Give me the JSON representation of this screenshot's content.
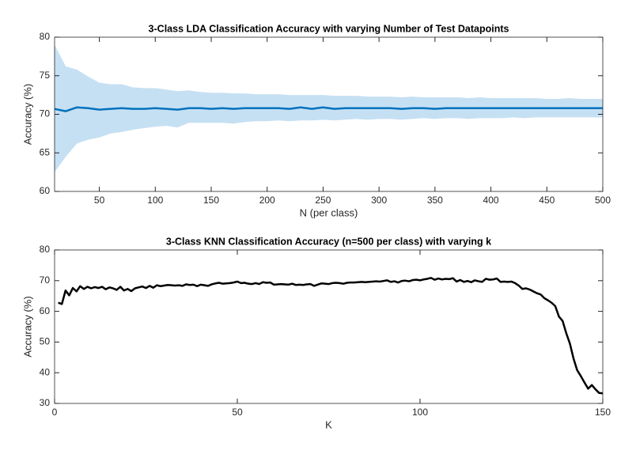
{
  "chart_data": [
    {
      "type": "line",
      "title": "3-Class LDA Classification Accuracy with varying Number of Test Datapoints",
      "xlabel": "N (per class)",
      "ylabel": "Accuracy (%)",
      "x": [
        10,
        20,
        30,
        40,
        50,
        60,
        70,
        80,
        90,
        100,
        110,
        120,
        130,
        140,
        150,
        160,
        170,
        180,
        190,
        200,
        210,
        220,
        230,
        240,
        250,
        260,
        270,
        280,
        290,
        300,
        310,
        320,
        330,
        340,
        350,
        360,
        370,
        380,
        390,
        400,
        410,
        420,
        430,
        440,
        450,
        460,
        470,
        480,
        490,
        500
      ],
      "series": [
        {
          "color": "#0072bd",
          "values": [
            70.7,
            70.4,
            70.9,
            70.8,
            70.6,
            70.7,
            70.8,
            70.7,
            70.7,
            70.8,
            70.7,
            70.6,
            70.8,
            70.8,
            70.7,
            70.8,
            70.7,
            70.8,
            70.8,
            70.8,
            70.8,
            70.7,
            70.9,
            70.7,
            70.9,
            70.7,
            70.8,
            70.8,
            70.8,
            70.8,
            70.8,
            70.7,
            70.8,
            70.8,
            70.7,
            70.8,
            70.8,
            70.8,
            70.8,
            70.8,
            70.8,
            70.8,
            70.8,
            70.8,
            70.8,
            70.8,
            70.8,
            70.8,
            70.8,
            70.8
          ]
        }
      ],
      "band": {
        "color": "#c6e0f3",
        "lower": [
          62.5,
          64.5,
          66.2,
          66.7,
          67.0,
          67.5,
          67.7,
          68.0,
          68.2,
          68.4,
          68.5,
          68.3,
          68.9,
          68.9,
          68.9,
          68.9,
          68.8,
          69.0,
          69.1,
          69.1,
          69.2,
          69.1,
          69.2,
          69.2,
          69.3,
          69.2,
          69.3,
          69.4,
          69.3,
          69.4,
          69.4,
          69.3,
          69.4,
          69.5,
          69.4,
          69.5,
          69.5,
          69.4,
          69.5,
          69.5,
          69.5,
          69.6,
          69.5,
          69.6,
          69.6,
          69.6,
          69.6,
          69.6,
          69.6,
          69.6
        ],
        "upper": [
          79.0,
          76.2,
          75.8,
          74.9,
          74.1,
          73.9,
          73.9,
          73.5,
          73.4,
          73.4,
          73.2,
          73.0,
          73.1,
          72.9,
          72.8,
          72.8,
          72.7,
          72.7,
          72.6,
          72.6,
          72.6,
          72.5,
          72.5,
          72.5,
          72.5,
          72.4,
          72.4,
          72.4,
          72.3,
          72.3,
          72.3,
          72.2,
          72.3,
          72.2,
          72.2,
          72.2,
          72.2,
          72.1,
          72.2,
          72.1,
          72.1,
          72.1,
          72.1,
          72.1,
          72.0,
          72.0,
          72.1,
          72.0,
          72.0,
          72.0
        ]
      },
      "xlim": [
        10,
        500
      ],
      "ylim": [
        60,
        80
      ],
      "xticks": [
        50,
        100,
        150,
        200,
        250,
        300,
        350,
        400,
        450,
        500
      ],
      "yticks": [
        60,
        65,
        70,
        75,
        80
      ]
    },
    {
      "type": "line",
      "title": "3-Class KNN Classification Accuracy (n=500 per class) with varying k",
      "xlabel": "K",
      "ylabel": "Accuracy (%)",
      "x": [
        1,
        2,
        3,
        4,
        5,
        6,
        7,
        8,
        9,
        10,
        11,
        12,
        13,
        14,
        15,
        16,
        17,
        18,
        19,
        20,
        21,
        22,
        23,
        24,
        25,
        26,
        27,
        28,
        29,
        30,
        31,
        32,
        33,
        34,
        35,
        36,
        37,
        38,
        39,
        40,
        41,
        42,
        43,
        44,
        45,
        46,
        47,
        48,
        49,
        50,
        51,
        52,
        53,
        54,
        55,
        56,
        57,
        58,
        59,
        60,
        61,
        62,
        63,
        64,
        65,
        66,
        67,
        68,
        69,
        70,
        71,
        72,
        73,
        74,
        75,
        76,
        77,
        78,
        79,
        80,
        81,
        82,
        83,
        84,
        85,
        86,
        87,
        88,
        89,
        90,
        91,
        92,
        93,
        94,
        95,
        96,
        97,
        98,
        99,
        100,
        101,
        102,
        103,
        104,
        105,
        106,
        107,
        108,
        109,
        110,
        111,
        112,
        113,
        114,
        115,
        116,
        117,
        118,
        119,
        120,
        121,
        122,
        123,
        124,
        125,
        126,
        127,
        128,
        129,
        130,
        131,
        132,
        133,
        134,
        135,
        136,
        137,
        138,
        139,
        140,
        141,
        142,
        143,
        144,
        145,
        146,
        147,
        148,
        149,
        150
      ],
      "series": [
        {
          "color": "#000000",
          "values": [
            62.8,
            62.4,
            66.8,
            65.2,
            67.6,
            66.5,
            68.2,
            67.3,
            68.0,
            67.5,
            67.9,
            67.6,
            68.0,
            67.2,
            67.8,
            67.5,
            67.0,
            68.0,
            66.8,
            67.3,
            66.6,
            67.5,
            67.8,
            68.1,
            67.6,
            68.3,
            67.7,
            68.5,
            68.2,
            68.4,
            68.6,
            68.5,
            68.4,
            68.5,
            68.3,
            68.8,
            68.6,
            68.7,
            68.2,
            68.7,
            68.5,
            68.3,
            68.8,
            69.1,
            69.3,
            69.0,
            69.1,
            69.2,
            69.4,
            69.7,
            69.2,
            69.3,
            69.0,
            68.9,
            69.2,
            68.9,
            69.5,
            69.3,
            69.4,
            68.7,
            68.8,
            68.9,
            68.8,
            68.7,
            69.0,
            68.6,
            68.7,
            68.6,
            68.8,
            68.9,
            68.3,
            68.7,
            69.1,
            69.0,
            68.9,
            69.2,
            69.3,
            69.2,
            69.0,
            69.3,
            69.4,
            69.4,
            69.5,
            69.6,
            69.5,
            69.6,
            69.7,
            69.8,
            69.7,
            69.9,
            70.1,
            69.6,
            69.8,
            69.4,
            69.9,
            70.0,
            69.8,
            70.2,
            70.3,
            70.1,
            70.4,
            70.6,
            70.9,
            70.3,
            70.7,
            70.4,
            70.6,
            70.5,
            70.8,
            69.7,
            70.2,
            69.6,
            69.9,
            69.5,
            70.1,
            69.8,
            69.6,
            70.6,
            70.3,
            70.4,
            70.7,
            69.6,
            69.7,
            69.6,
            69.7,
            69.2,
            68.4,
            67.3,
            67.5,
            67.1,
            66.5,
            65.9,
            65.5,
            64.3,
            63.6,
            62.8,
            61.7,
            58.3,
            56.9,
            52.9,
            49.5,
            44.6,
            40.8,
            38.9,
            36.8,
            34.8,
            36.0,
            34.6,
            33.4,
            33.3
          ]
        }
      ],
      "xlim": [
        0,
        150
      ],
      "ylim": [
        30,
        80
      ],
      "xticks": [
        0,
        50,
        100,
        150
      ],
      "yticks": [
        30,
        40,
        50,
        60,
        70,
        80
      ]
    }
  ]
}
